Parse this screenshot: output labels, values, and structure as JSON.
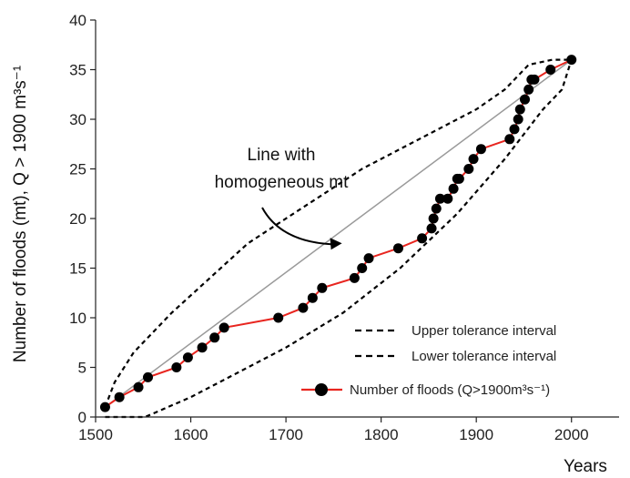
{
  "chart_data": {
    "type": "line",
    "title": "",
    "xlabel": "Years",
    "ylabel": "Number of floods (mt), Q > 1900 m³s⁻¹",
    "xlim": [
      1500,
      2050
    ],
    "ylim": [
      0,
      40
    ],
    "x_ticks": [
      "1500",
      "1600",
      "1700",
      "1800",
      "1900",
      "2000"
    ],
    "y_ticks": [
      "0",
      "5",
      "10",
      "15",
      "20",
      "25",
      "30",
      "35",
      "40"
    ],
    "grid": false,
    "legend_position": "bottom-right",
    "annotation": {
      "lines": [
        "Line with",
        "homogeneous mt"
      ],
      "points_to": [
        1755,
        17.5
      ]
    },
    "homogeneous_line": {
      "x": [
        1510,
        2000
      ],
      "y": [
        1,
        36
      ]
    },
    "series": [
      {
        "name": "Upper tolerance interval",
        "style": "dashed",
        "color": "#000000",
        "x": [
          1510,
          1520,
          1540,
          1580,
          1620,
          1660,
          1700,
          1740,
          1780,
          1820,
          1860,
          1900,
          1930,
          1955,
          1980,
          2000
        ],
        "y": [
          1,
          3.5,
          6.5,
          10.5,
          14,
          17.5,
          20,
          22.5,
          25,
          27,
          29,
          31,
          33,
          35.5,
          36,
          36
        ]
      },
      {
        "name": "Lower tolerance interval",
        "style": "dashed",
        "color": "#000000",
        "x": [
          1510,
          1530,
          1552,
          1600,
          1640,
          1700,
          1760,
          1820,
          1880,
          1930,
          1970,
          1990,
          2000
        ],
        "y": [
          0,
          0,
          0,
          2,
          4,
          7,
          10.5,
          15,
          20.5,
          26,
          31,
          33,
          36
        ]
      },
      {
        "name": "Number of floods (Q>1900m³s⁻¹)",
        "style": "solid",
        "color": "#e8251f",
        "marker": "circle",
        "x": [
          1510,
          1525,
          1545,
          1555,
          1585,
          1597,
          1612,
          1625,
          1635,
          1692,
          1718,
          1728,
          1738,
          1772,
          1780,
          1787,
          1818,
          1843,
          1853,
          1855,
          1858,
          1862,
          1870,
          1876,
          1880,
          1882,
          1892,
          1897,
          1905,
          1935,
          1940,
          1944,
          1946,
          1951,
          1955,
          1958,
          1961,
          1978,
          2000
        ],
        "y": [
          1,
          2,
          3,
          4,
          5,
          6,
          7,
          8,
          9,
          10,
          11,
          12,
          13,
          14,
          15,
          16,
          17,
          18,
          19,
          20,
          21,
          22,
          22,
          23,
          24,
          24,
          25,
          26,
          27,
          28,
          29,
          30,
          31,
          32,
          33,
          34,
          34,
          35,
          36
        ]
      }
    ]
  }
}
